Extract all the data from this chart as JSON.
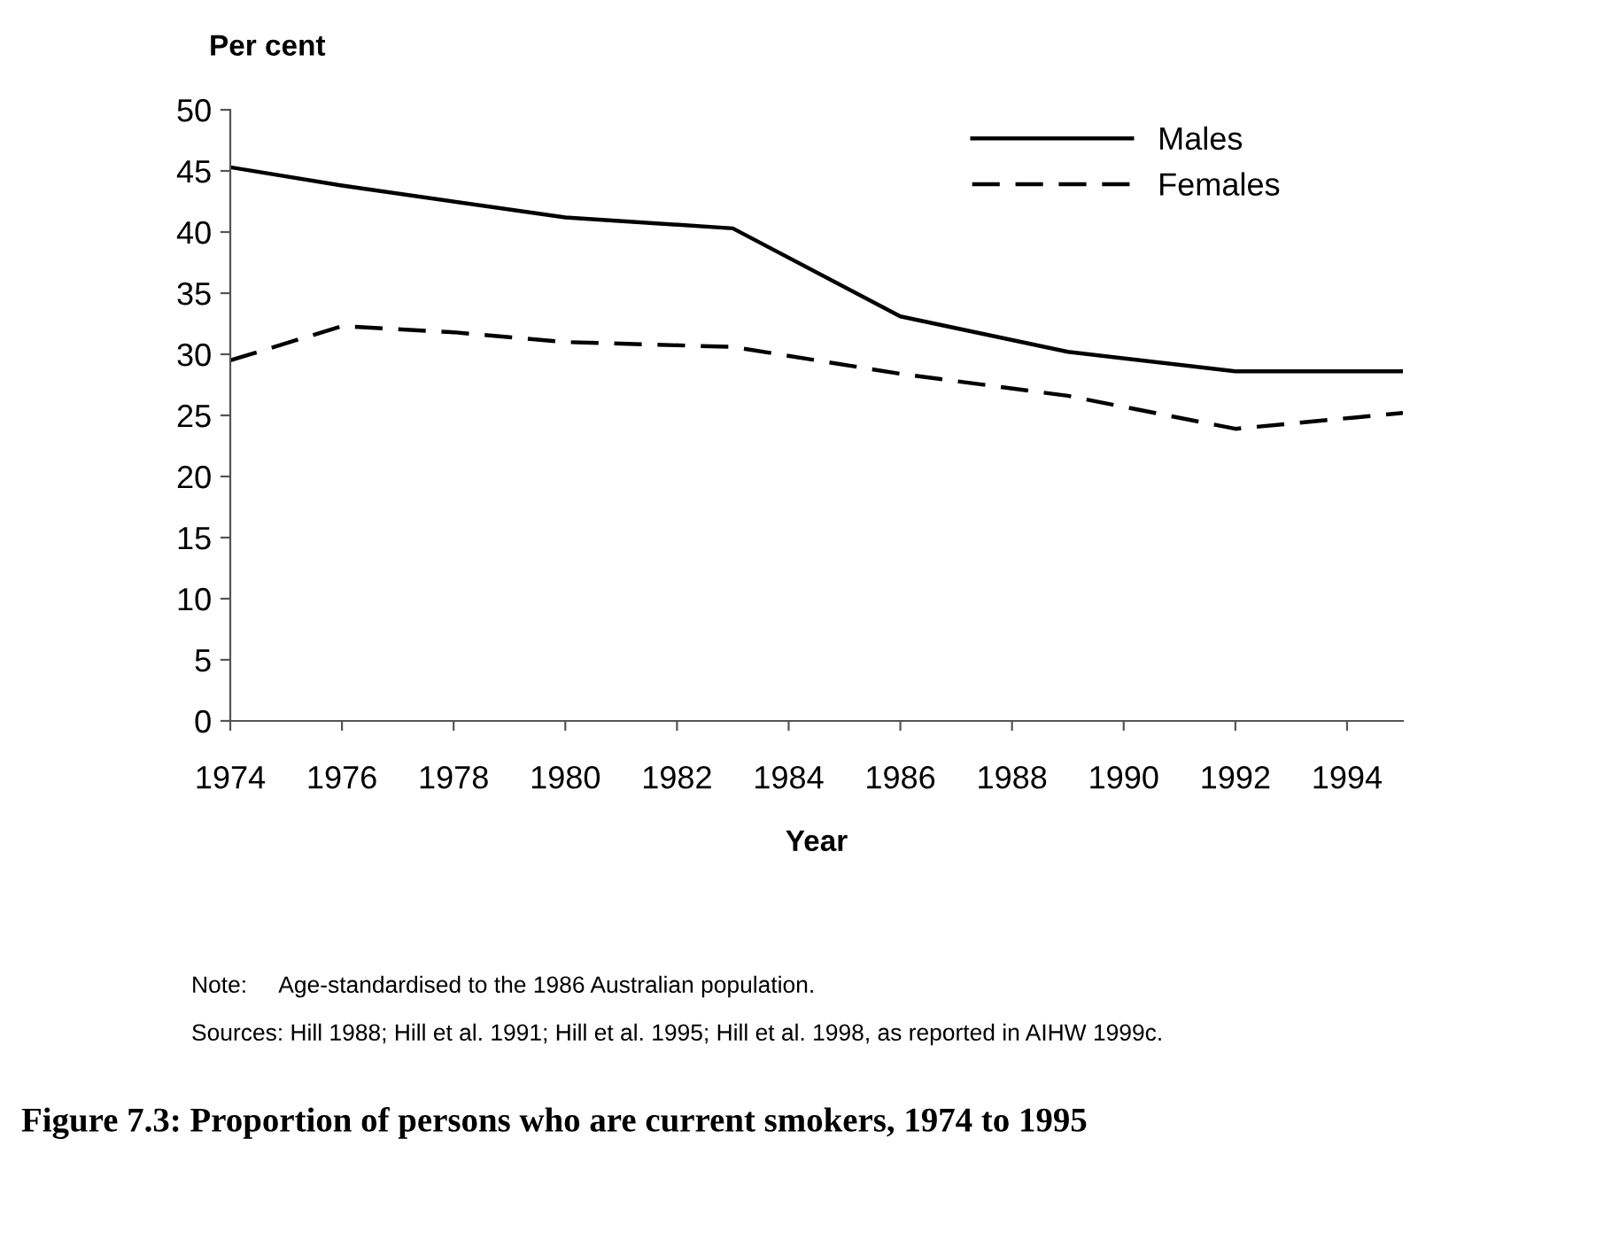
{
  "chart_data": {
    "type": "line",
    "title": "Figure 7.3: Proportion of persons who are current smokers, 1974 to 1995",
    "xlabel": "Year",
    "ylabel": "Per cent",
    "series": [
      {
        "name": "Males",
        "color": "#000000",
        "line_style": "solid",
        "x": [
          1974,
          1976,
          1980,
          1983,
          1986,
          1989,
          1992,
          1995
        ],
        "values": [
          45.3,
          43.8,
          41.2,
          40.3,
          33.1,
          30.2,
          28.6,
          28.6
        ]
      },
      {
        "name": "Females",
        "color": "#000000",
        "line_style": "dashed",
        "x": [
          1974,
          1976,
          1978,
          1980,
          1983,
          1986,
          1989,
          1992,
          1995
        ],
        "values": [
          29.5,
          32.3,
          31.8,
          31.0,
          30.6,
          28.4,
          26.6,
          23.9,
          25.2
        ]
      }
    ],
    "xlim": [
      1974,
      1995
    ],
    "xticks": [
      1974,
      1976,
      1978,
      1980,
      1982,
      1984,
      1986,
      1988,
      1990,
      1992,
      1994
    ],
    "ylim": [
      0,
      50
    ],
    "yticks": [
      0,
      5,
      10,
      15,
      20,
      25,
      30,
      35,
      40,
      45,
      50
    ],
    "grid": false,
    "legend": "top right",
    "marker": "none",
    "annotations": [
      "Note:     Age-standardised to the 1986 Australian population.",
      "Sources: Hill 1988; Hill et al. 1991; Hill et al. 1995; Hill et al. 1998, as reported in AIHW 1999c."
    ]
  }
}
